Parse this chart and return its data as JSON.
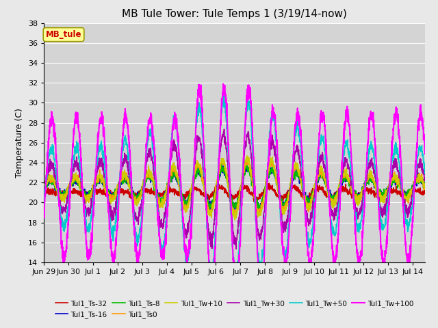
{
  "title": "MB Tule Tower: Tule Temps 1 (3/19/14-now)",
  "ylabel": "Temperature (C)",
  "background_color": "#e8e8e8",
  "plot_bg_color": "#d4d4d4",
  "grid_color": "#ffffff",
  "ylim": [
    14,
    38
  ],
  "yticks": [
    14,
    16,
    18,
    20,
    22,
    24,
    26,
    28,
    30,
    32,
    34,
    36,
    38
  ],
  "legend_label": "MB_tule",
  "series": [
    {
      "label": "Tul1_Ts-32",
      "color": "#cc0000",
      "lw": 1.2
    },
    {
      "label": "Tul1_Ts-16",
      "color": "#0000cc",
      "lw": 1.2
    },
    {
      "label": "Tul1_Ts-8",
      "color": "#00bb00",
      "lw": 1.2
    },
    {
      "label": "Tul1_Ts0",
      "color": "#ff9900",
      "lw": 1.2
    },
    {
      "label": "Tul1_Tw+10",
      "color": "#cccc00",
      "lw": 1.2
    },
    {
      "label": "Tul1_Tw+30",
      "color": "#aa00aa",
      "lw": 1.2
    },
    {
      "label": "Tul1_Tw+50",
      "color": "#00cccc",
      "lw": 1.2
    },
    {
      "label": "Tul1_Tw+100",
      "color": "#ff00ff",
      "lw": 1.5
    }
  ],
  "xtick_labels": [
    "Jun 29",
    "Jun 30",
    "Jul 1",
    "Jul 2",
    "Jul 3",
    "Jul 4",
    "Jul 5",
    "Jul 6",
    "Jul 7",
    "Jul 8",
    "Jul 9",
    "Jul 10",
    "Jul 11",
    "Jul 12",
    "Jul 13",
    "Jul 14"
  ],
  "title_fontsize": 11,
  "label_fontsize": 9,
  "tick_fontsize": 8
}
